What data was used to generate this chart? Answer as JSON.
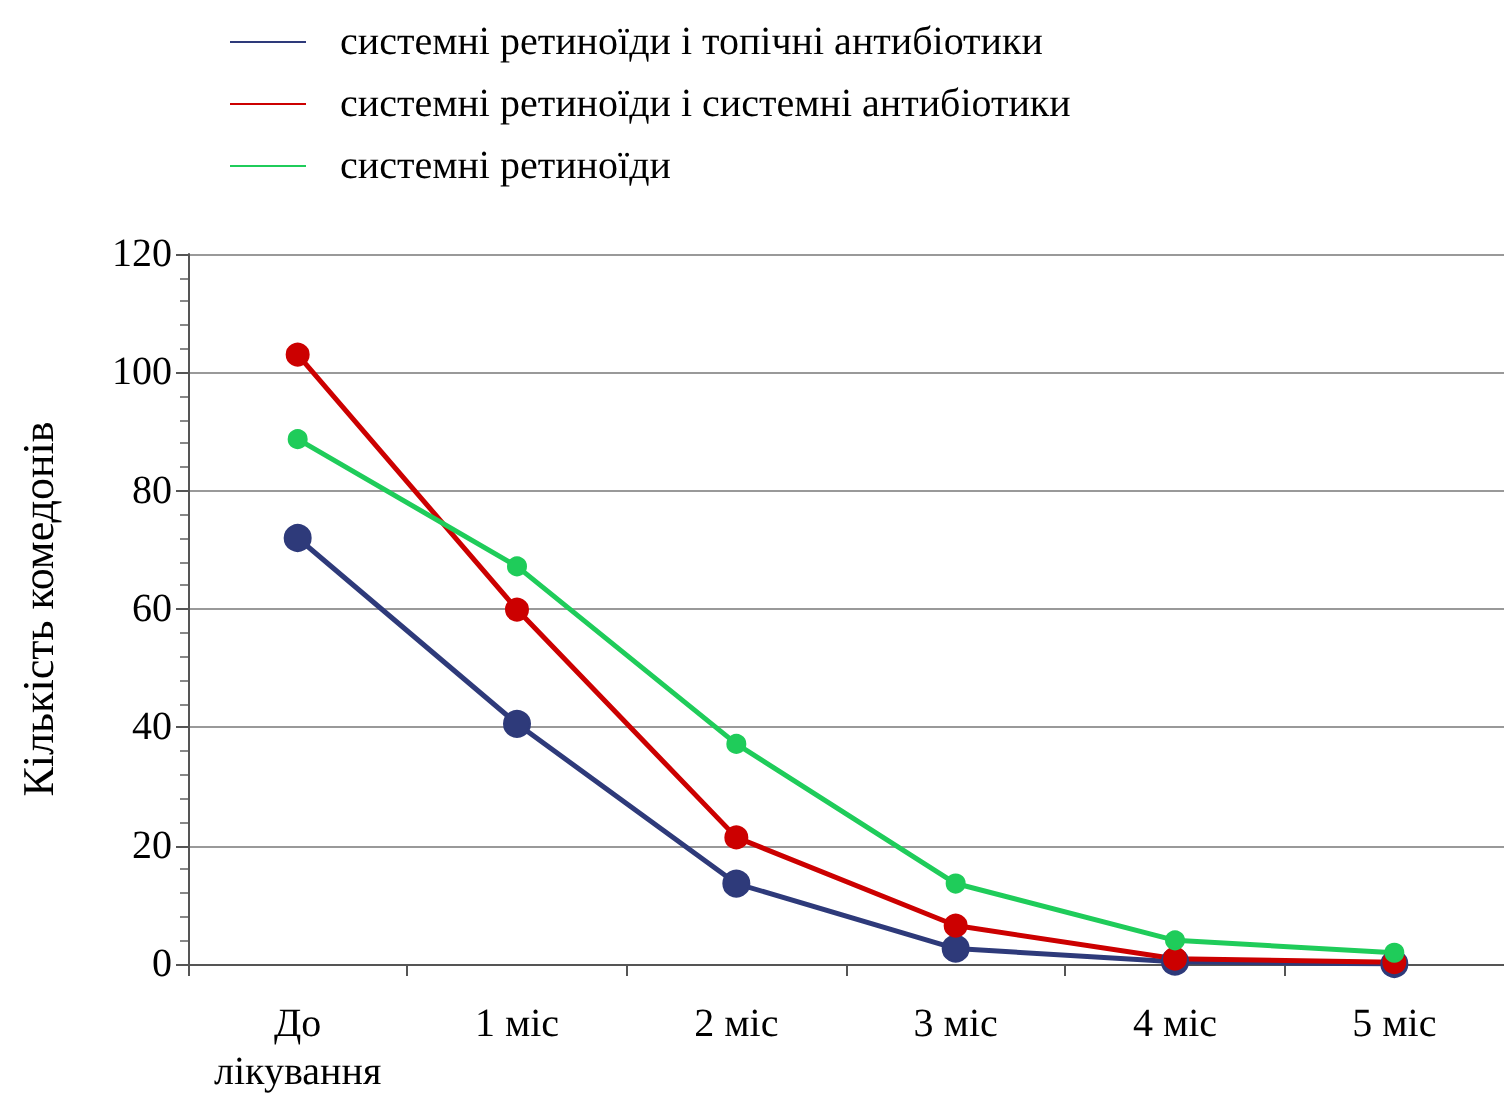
{
  "chart_data": {
    "type": "line",
    "ylabel": "Кількість комедонів",
    "categories": [
      "До лікування",
      "1 міс",
      "2 міс",
      "3 міс",
      "4 міс",
      "5 міс"
    ],
    "series": [
      {
        "name": "системні ретиноїди і топічні антибіотики",
        "color": "#2e3a7a",
        "values": [
          72,
          40.6,
          13.6,
          2.6,
          0.4,
          0
        ]
      },
      {
        "name": "системні ретиноїди і системні антибіотики",
        "color": "#cc0000",
        "values": [
          103,
          59.9,
          21.4,
          6.5,
          0.9,
          0.3
        ]
      },
      {
        "name": "системні ретиноїди",
        "color": "#1fcc5a",
        "values": [
          88.7,
          67.2,
          37.2,
          13.6,
          4,
          1.9
        ]
      }
    ],
    "ylim": [
      0,
      120
    ],
    "yticks": [
      0,
      20,
      40,
      60,
      80,
      100,
      120
    ],
    "grid": "y",
    "legend": "top left",
    "marker": "circle",
    "line_style": "solid"
  }
}
